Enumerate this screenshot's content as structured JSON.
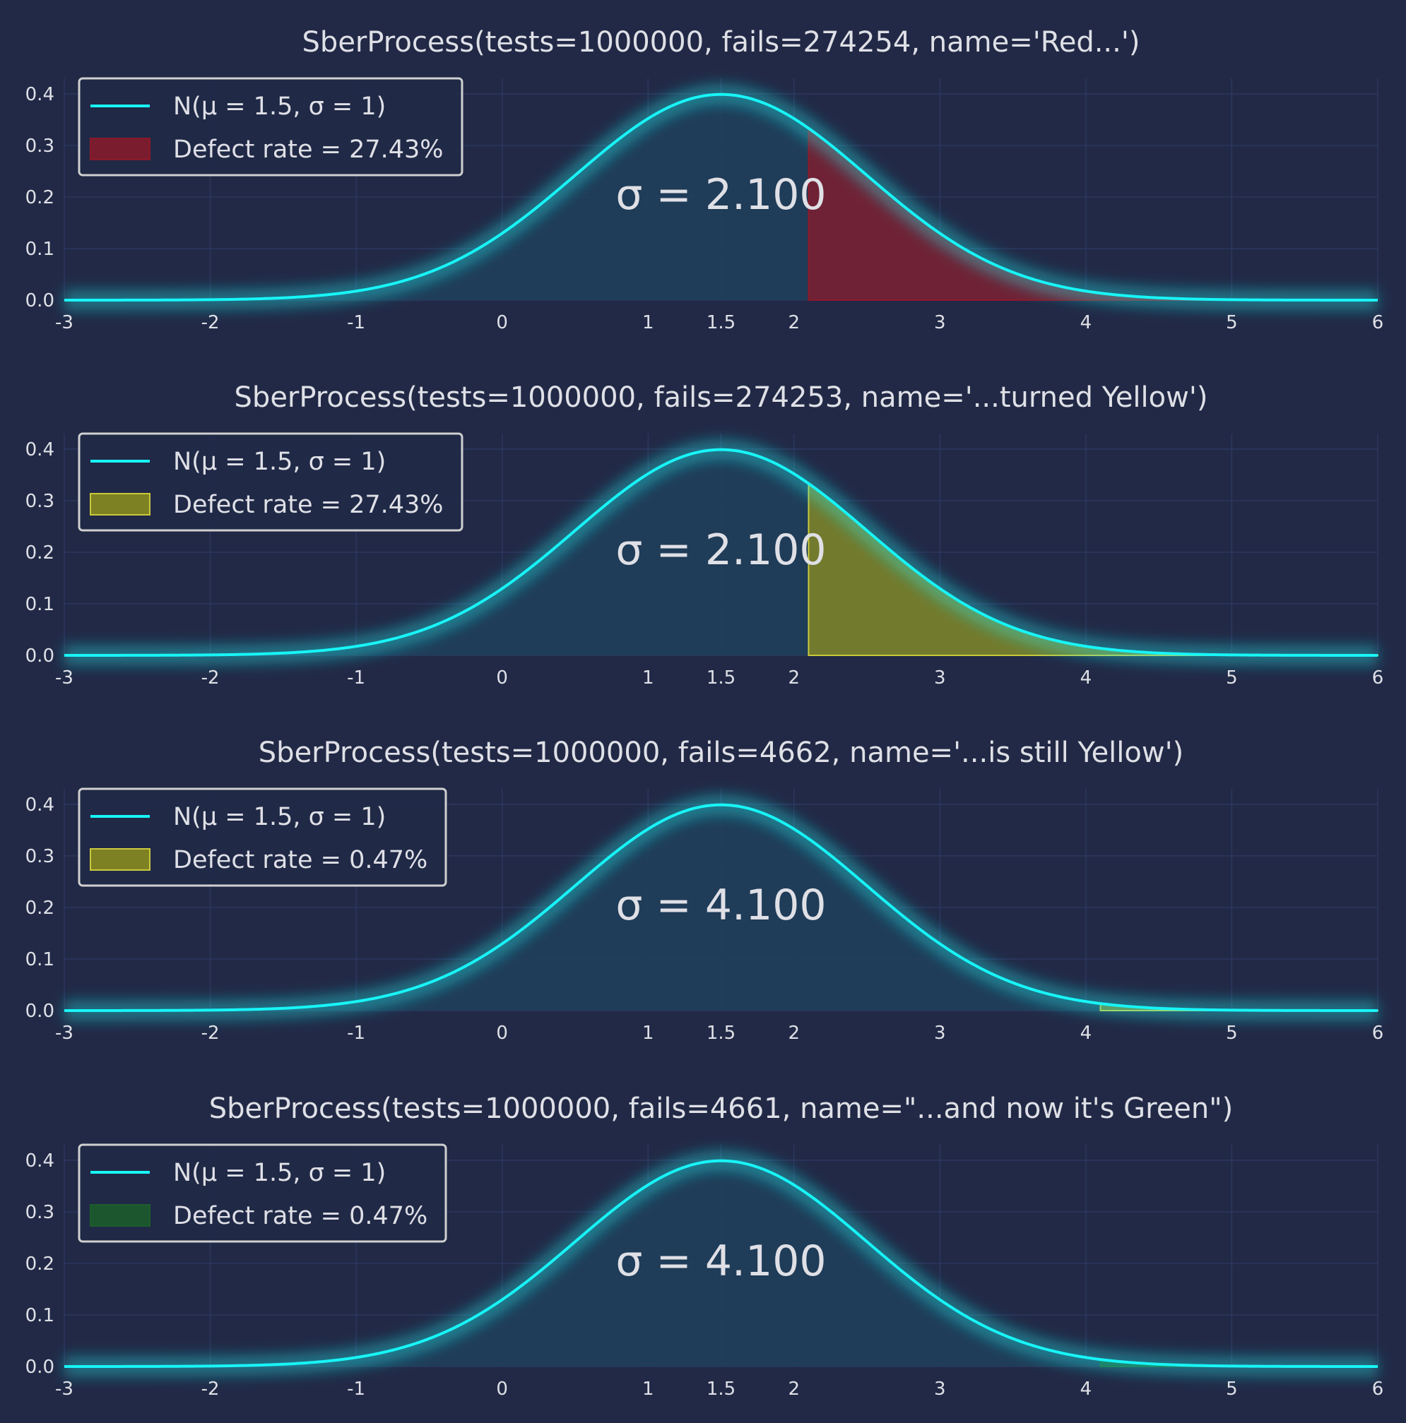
{
  "chart_data": [
    {
      "type": "area",
      "title": "SberProcess(tests=1000000, fails=274254, name='Red...')",
      "distribution": {
        "mu": 1.5,
        "sigma": 1
      },
      "legend_curve_label": "N(μ = 1.5, σ = 1)",
      "legend_fill_label": "Defect rate = 27.43%",
      "sigma_label": "σ = 2.100",
      "defect_threshold": 2.1,
      "defect_fill_color": "#8b1a2a",
      "defect_edge_color": "#8b1a2a",
      "xlim": [
        -3,
        6
      ],
      "ylim": [
        0,
        0.43
      ],
      "xticks": [
        -3,
        -2,
        -1,
        0,
        1,
        1.5,
        2,
        3,
        4,
        5,
        6
      ],
      "xtick_labels": [
        "-3",
        "-2",
        "-1",
        "0",
        "1",
        "1.5",
        "2",
        "3",
        "4",
        "5",
        "6"
      ],
      "yticks": [
        0.0,
        0.1,
        0.2,
        0.3,
        0.4
      ],
      "ytick_labels": [
        "0.0",
        "0.1",
        "0.2",
        "0.3",
        "0.4"
      ],
      "grid": true,
      "legend_position": "upper-left"
    },
    {
      "type": "area",
      "title": "SberProcess(tests=1000000, fails=274253, name='...turned Yellow')",
      "distribution": {
        "mu": 1.5,
        "sigma": 1
      },
      "legend_curve_label": "N(μ = 1.5, σ = 1)",
      "legend_fill_label": "Defect rate = 27.43%",
      "sigma_label": "σ = 2.100",
      "defect_threshold": 2.1,
      "defect_fill_color": "#8f8f1f",
      "defect_edge_color": "#c9c93a",
      "xlim": [
        -3,
        6
      ],
      "ylim": [
        0,
        0.43
      ],
      "xticks": [
        -3,
        -2,
        -1,
        0,
        1,
        1.5,
        2,
        3,
        4,
        5,
        6
      ],
      "xtick_labels": [
        "-3",
        "-2",
        "-1",
        "0",
        "1",
        "1.5",
        "2",
        "3",
        "4",
        "5",
        "6"
      ],
      "yticks": [
        0.0,
        0.1,
        0.2,
        0.3,
        0.4
      ],
      "ytick_labels": [
        "0.0",
        "0.1",
        "0.2",
        "0.3",
        "0.4"
      ],
      "grid": true,
      "legend_position": "upper-left"
    },
    {
      "type": "area",
      "title": "SberProcess(tests=1000000, fails=4662, name='...is still Yellow')",
      "distribution": {
        "mu": 1.5,
        "sigma": 1
      },
      "legend_curve_label": "N(μ = 1.5, σ = 1)",
      "legend_fill_label": "Defect rate = 0.47%",
      "sigma_label": "σ = 4.100",
      "defect_threshold": 4.1,
      "defect_fill_color": "#8f8f1f",
      "defect_edge_color": "#c9c93a",
      "xlim": [
        -3,
        6
      ],
      "ylim": [
        0,
        0.43
      ],
      "xticks": [
        -3,
        -2,
        -1,
        0,
        1,
        1.5,
        2,
        3,
        4,
        5,
        6
      ],
      "xtick_labels": [
        "-3",
        "-2",
        "-1",
        "0",
        "1",
        "1.5",
        "2",
        "3",
        "4",
        "5",
        "6"
      ],
      "yticks": [
        0.0,
        0.1,
        0.2,
        0.3,
        0.4
      ],
      "ytick_labels": [
        "0.0",
        "0.1",
        "0.2",
        "0.3",
        "0.4"
      ],
      "grid": true,
      "legend_position": "upper-left"
    },
    {
      "type": "area",
      "title": "SberProcess(tests=1000000, fails=4661, name=\"...and now it's Green\")",
      "distribution": {
        "mu": 1.5,
        "sigma": 1
      },
      "legend_curve_label": "N(μ = 1.5, σ = 1)",
      "legend_fill_label": "Defect rate = 0.47%",
      "sigma_label": "σ = 4.100",
      "defect_threshold": 4.1,
      "defect_fill_color": "#1b5e2c",
      "defect_edge_color": "#1b5e2c",
      "xlim": [
        -3,
        6
      ],
      "ylim": [
        0,
        0.43
      ],
      "xticks": [
        -3,
        -2,
        -1,
        0,
        1,
        1.5,
        2,
        3,
        4,
        5,
        6
      ],
      "xtick_labels": [
        "-3",
        "-2",
        "-1",
        "0",
        "1",
        "1.5",
        "2",
        "3",
        "4",
        "5",
        "6"
      ],
      "yticks": [
        0.0,
        0.1,
        0.2,
        0.3,
        0.4
      ],
      "ytick_labels": [
        "0.0",
        "0.1",
        "0.2",
        "0.3",
        "0.4"
      ],
      "grid": true,
      "legend_position": "upper-left"
    }
  ],
  "colors": {
    "background": "#212946",
    "curve": "#18f5f7",
    "curve_area": "#1f3f5c",
    "grid": "#2f3a65",
    "text": "#dfe0e6",
    "legend_border": "#d0d0d0"
  }
}
